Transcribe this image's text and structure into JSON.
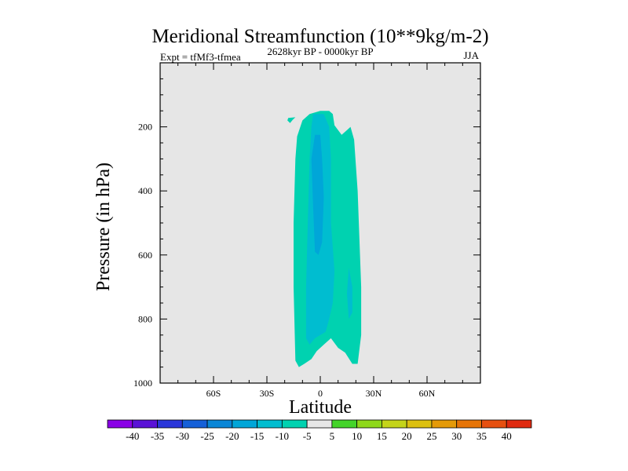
{
  "chart_data": {
    "type": "heatmap",
    "title": "Meridional Streamfunction (10**9kg/m-2)",
    "subtitle_left": "Expt = tfMf3-tfmea",
    "subtitle_center": "2628kyr BP - 0000kyr BP",
    "subtitle_right": "JJA",
    "xlabel": "Latitude",
    "ylabel": "Pressure (in hPa)",
    "xlim": [
      -90,
      90
    ],
    "ylim": [
      1000,
      0
    ],
    "x_ticks": [
      {
        "value": -60,
        "label": "60S"
      },
      {
        "value": -30,
        "label": "30S"
      },
      {
        "value": 0,
        "label": "0"
      },
      {
        "value": 30,
        "label": "30N"
      },
      {
        "value": 60,
        "label": "60N"
      }
    ],
    "y_ticks": [
      {
        "value": 200,
        "label": "200"
      },
      {
        "value": 400,
        "label": "400"
      },
      {
        "value": 600,
        "label": "600"
      },
      {
        "value": 800,
        "label": "800"
      },
      {
        "value": 1000,
        "label": "1000"
      }
    ],
    "background_color": "#e6e6e6",
    "colorbar": {
      "labels": [
        "-40",
        "-35",
        "-30",
        "-25",
        "-20",
        "-15",
        "-10",
        "-5",
        "5",
        "10",
        "15",
        "20",
        "25",
        "30",
        "35",
        "40"
      ],
      "colors": [
        "#8a00e6",
        "#5a12d6",
        "#2a36d9",
        "#1560d8",
        "#0a86d6",
        "#00a6d8",
        "#00bdd0",
        "#00d2b0",
        "#e6e6e6",
        "#44d42a",
        "#8ed81a",
        "#c4d41a",
        "#dcc010",
        "#e49a08",
        "#e67406",
        "#e65010",
        "#e02a10"
      ]
    },
    "contour_levels": [
      {
        "level": -5,
        "color": "#00d2b0",
        "region": "band from 15S to 20N, 150 to 950 hPa, plus small patch near 18S 175 hPa"
      },
      {
        "level": -10,
        "color": "#00bdd0",
        "region": "5S to 8N, 160 to 880 hPa"
      },
      {
        "level": -15,
        "color": "#00a6d8",
        "region": "6S to 2N, 220 to 600 hPa"
      }
    ]
  }
}
